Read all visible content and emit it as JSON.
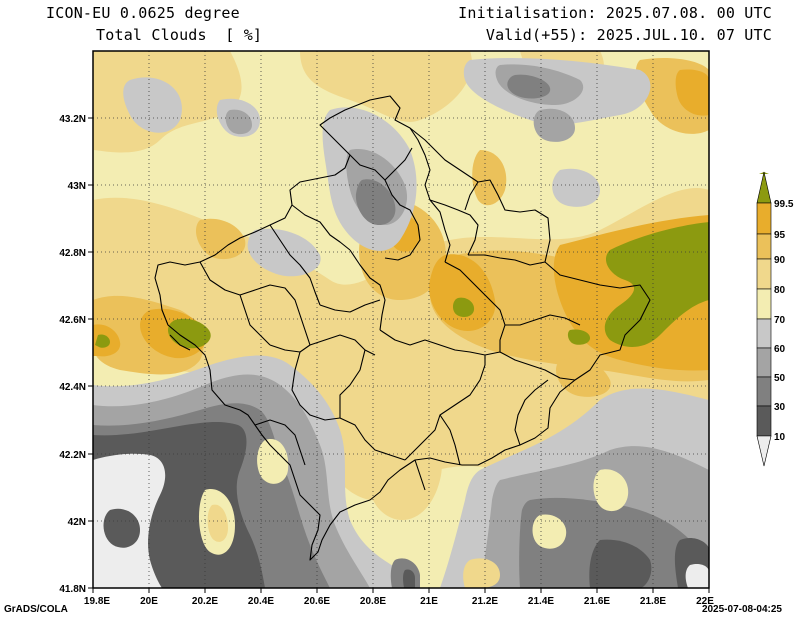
{
  "header": {
    "model": "ICON-EU 0.0625 degree",
    "variable": "Total Clouds  [ %]",
    "init": "Initialisation: 2025.07.08. 00 UTC",
    "valid": "Valid(+55): 2025.JUL.10. 07 UTC"
  },
  "map": {
    "lon_ticks": [
      "19.8E",
      "20E",
      "20.2E",
      "20.4E",
      "20.6E",
      "20.8E",
      "21E",
      "21.2E",
      "21.4E",
      "21.6E",
      "21.8E",
      "22E"
    ],
    "lat_ticks": [
      "43.2N",
      "43N",
      "42.8N",
      "42.6N",
      "42.4N",
      "42.2N",
      "42N",
      "41.8N"
    ],
    "lon_range": [
      19.8,
      22.0
    ],
    "lat_range": [
      41.8,
      43.4
    ]
  },
  "legend": {
    "labels": [
      "99.5",
      "95",
      "90",
      "80",
      "70",
      "60",
      "50",
      "30",
      "10"
    ],
    "colors": [
      "#8c9a10",
      "#e8ad2c",
      "#ebc15a",
      "#f0d88c",
      "#f3edb2",
      "#c8c8c8",
      "#a4a4a4",
      "#808080",
      "#5a5a5a",
      "#ededed"
    ]
  },
  "footer": {
    "left": "GrADS/COLA",
    "right": "2025-07-08-04:25"
  }
}
